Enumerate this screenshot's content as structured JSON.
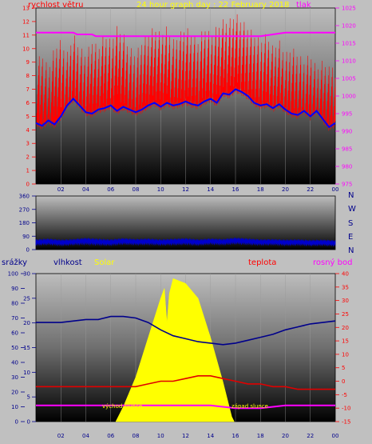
{
  "colors": {
    "wind": "#ff0000",
    "pressure": "#ff00ff",
    "gust": "#0000ff",
    "dir": "#0000cc",
    "hum": "#00008b",
    "solar": "#ffff00",
    "temp": "#e00000",
    "dew": "#ff00ff",
    "rain": "#1a3a8a",
    "title": "#ffff00"
  },
  "chart_data": [
    {
      "type": "line",
      "title": "24 hour graph day : 22 February 2018",
      "left_label": "rychlost větru",
      "right_label": "tlak",
      "x_tick_labels": [
        "02",
        "04",
        "06",
        "08",
        "10",
        "12",
        "14",
        "16",
        "18",
        "20",
        "22",
        "00"
      ],
      "x_ticks_hours": [
        2,
        4,
        6,
        8,
        10,
        12,
        14,
        16,
        18,
        20,
        22,
        24
      ],
      "y_left_range": [
        0,
        13
      ],
      "y_left_ticks": [
        "0",
        "1",
        "2",
        "3",
        "4",
        "5",
        "6",
        "7",
        "8",
        "9",
        "10",
        "11",
        "12",
        "13"
      ],
      "y_right_range": [
        975,
        1025
      ],
      "y_right_ticks": [
        "975",
        "980",
        "985",
        "990",
        "995",
        "1000",
        "1005",
        "1010",
        "1015",
        "1020",
        "1025"
      ],
      "series": [
        {
          "key": "gust",
          "hours": [
            0,
            0.5,
            1,
            1.5,
            2,
            2.5,
            3,
            3.5,
            4,
            4.5,
            5,
            5.5,
            6,
            6.5,
            7,
            7.5,
            8,
            8.5,
            9,
            9.5,
            10,
            10.5,
            11,
            11.5,
            12,
            12.5,
            13,
            13.5,
            14,
            14.5,
            15,
            15.5,
            16,
            16.5,
            17,
            17.5,
            18,
            18.5,
            19,
            19.5,
            20,
            20.5,
            21,
            21.5,
            22,
            22.5,
            23,
            23.5,
            24
          ],
          "values": [
            6.5,
            7,
            6,
            7.5,
            8,
            7,
            8.5,
            7.5,
            7,
            8,
            7.5,
            8.5,
            8,
            9,
            8.5,
            7.5,
            7,
            8,
            8.5,
            9,
            8.5,
            9,
            8,
            8.5,
            9,
            8.5,
            8,
            9,
            8.5,
            9,
            9.5,
            9.5,
            10,
            9.5,
            9,
            8.5,
            8,
            8.5,
            7.5,
            8,
            7,
            7.5,
            7,
            6.5,
            7,
            6,
            6.5,
            6,
            6.5
          ]
        },
        {
          "key": "wind",
          "hours": [
            0,
            0.5,
            1,
            1.5,
            2,
            2.5,
            3,
            3.5,
            4,
            4.5,
            5,
            5.5,
            6,
            6.5,
            7,
            7.5,
            8,
            8.5,
            9,
            9.5,
            10,
            10.5,
            11,
            11.5,
            12,
            12.5,
            13,
            13.5,
            14,
            14.5,
            15,
            15.5,
            16,
            16.5,
            17,
            17.5,
            18,
            18.5,
            19,
            19.5,
            20,
            20.5,
            21,
            21.5,
            22,
            22.5,
            23,
            23.5,
            24
          ],
          "values": [
            4.5,
            4.3,
            4.7,
            4.4,
            5,
            5.8,
            6.3,
            5.8,
            5.3,
            5.2,
            5.5,
            5.6,
            5.8,
            5.4,
            5.7,
            5.5,
            5.3,
            5.5,
            5.8,
            6,
            5.7,
            6,
            5.8,
            5.9,
            6.1,
            5.9,
            5.8,
            6.1,
            6.3,
            6,
            6.7,
            6.6,
            7,
            6.8,
            6.5,
            6,
            5.8,
            5.9,
            5.6,
            5.9,
            5.5,
            5.2,
            5.1,
            5.4,
            5,
            5.4,
            4.8,
            4.2,
            4.5
          ]
        },
        {
          "key": "pressure",
          "hours": [
            0,
            2,
            3,
            3.3,
            4.5,
            4.8,
            6,
            8,
            9,
            12,
            14,
            16,
            17,
            18,
            20,
            22,
            24
          ],
          "values": [
            1018,
            1018,
            1018,
            1017.5,
            1017.5,
            1017,
            1017,
            1017,
            1017,
            1017,
            1017,
            1017,
            1017,
            1017,
            1018,
            1018,
            1018
          ]
        }
      ]
    },
    {
      "type": "scatter",
      "title": "",
      "x_tick_labels": [
        "02",
        "04",
        "06",
        "08",
        "10",
        "12",
        "14",
        "16",
        "18",
        "20",
        "22",
        "00"
      ],
      "y_range": [
        0,
        360
      ],
      "y_ticks": [
        "0",
        "90",
        "180",
        "270",
        "360"
      ],
      "y_tick_values": [
        0,
        90,
        180,
        270,
        360
      ],
      "right_labels": [
        "N",
        "W",
        "S",
        "E",
        "N"
      ],
      "series": [
        {
          "key": "dir_low",
          "hours": [
            0,
            1,
            2,
            3,
            4,
            5,
            6,
            7,
            8,
            9,
            10,
            11,
            12,
            13,
            14,
            15,
            16,
            17,
            18,
            19,
            20,
            21,
            22,
            23,
            24
          ],
          "values": [
            25,
            30,
            22,
            28,
            30,
            26,
            24,
            32,
            28,
            30,
            26,
            28,
            30,
            25,
            32,
            28,
            34,
            30,
            26,
            28,
            24,
            26,
            22,
            24,
            20
          ]
        },
        {
          "key": "dir_high",
          "hours": [
            0,
            1,
            2,
            3,
            4,
            5,
            6,
            7,
            8,
            9,
            10,
            11,
            12,
            13,
            14,
            15,
            16,
            17,
            18,
            19,
            20,
            21,
            22,
            23,
            24
          ],
          "values": [
            70,
            75,
            68,
            72,
            80,
            74,
            70,
            78,
            72,
            76,
            70,
            74,
            78,
            70,
            76,
            72,
            82,
            76,
            70,
            72,
            68,
            70,
            66,
            68,
            64
          ]
        }
      ]
    },
    {
      "type": "line",
      "title": "",
      "labels": {
        "rain": "srážky",
        "hum": "vlhkost",
        "solar": "Solar",
        "temp": "teplota",
        "dew": "rosný bod"
      },
      "annotations": {
        "sunrise": "východ slunce",
        "sunset": "západ slunce"
      },
      "x_tick_labels": [
        "02",
        "04",
        "06",
        "08",
        "10",
        "12",
        "14",
        "16",
        "18",
        "20",
        "22",
        "00"
      ],
      "y_left_range": [
        0,
        100
      ],
      "y_left_ticks": [
        "0",
        "10",
        "20",
        "30",
        "40",
        "50",
        "60",
        "70",
        "80",
        "90",
        "100"
      ],
      "y_inner_range": [
        0,
        30
      ],
      "y_inner_ticks": [
        "0",
        "5",
        "10",
        "15",
        "20",
        "25",
        "30"
      ],
      "y_right_range": [
        -15,
        40
      ],
      "y_right_ticks": [
        "-15",
        "-10",
        "-5",
        "0",
        "5",
        "10",
        "15",
        "20",
        "25",
        "30",
        "35",
        "40"
      ],
      "series": [
        {
          "key": "hum",
          "hours": [
            0,
            2,
            4,
            5,
            6,
            7,
            8,
            9,
            10,
            11,
            12,
            13,
            14,
            15,
            16,
            17,
            18,
            19,
            20,
            21,
            22,
            23,
            24
          ],
          "values": [
            67,
            67,
            69,
            69,
            71,
            71,
            70,
            67,
            62,
            58,
            56,
            54,
            53,
            52,
            53,
            55,
            57,
            59,
            62,
            64,
            66,
            67,
            68
          ]
        },
        {
          "key": "temp",
          "hours": [
            0,
            2,
            4,
            6,
            8,
            9,
            10,
            11,
            12,
            13,
            14,
            15,
            16,
            17,
            18,
            19,
            20,
            21,
            22,
            23,
            24
          ],
          "values": [
            -2,
            -2,
            -2,
            -2,
            -2,
            -1,
            0,
            0,
            1,
            2,
            2,
            1,
            0,
            -1,
            -1,
            -2,
            -2,
            -3,
            -3,
            -3,
            -3
          ]
        },
        {
          "key": "dew",
          "hours": [
            0,
            2,
            4,
            6,
            8,
            10,
            12,
            14,
            16,
            18,
            20,
            22,
            24
          ],
          "values": [
            -9,
            -9,
            -9,
            -9,
            -9,
            -9,
            -9,
            -9,
            -10,
            -10,
            -9,
            -9,
            -9
          ]
        },
        {
          "key": "solar",
          "unit": "W/m2",
          "hours": [
            6.4,
            7,
            8,
            9,
            10,
            10.3,
            10.5,
            10.7,
            11,
            12,
            13,
            14,
            15,
            15.7,
            15.9
          ],
          "values": [
            0,
            3,
            9,
            17,
            25,
            27,
            20,
            26,
            29,
            28,
            25,
            17,
            8,
            1,
            0
          ]
        }
      ]
    }
  ]
}
